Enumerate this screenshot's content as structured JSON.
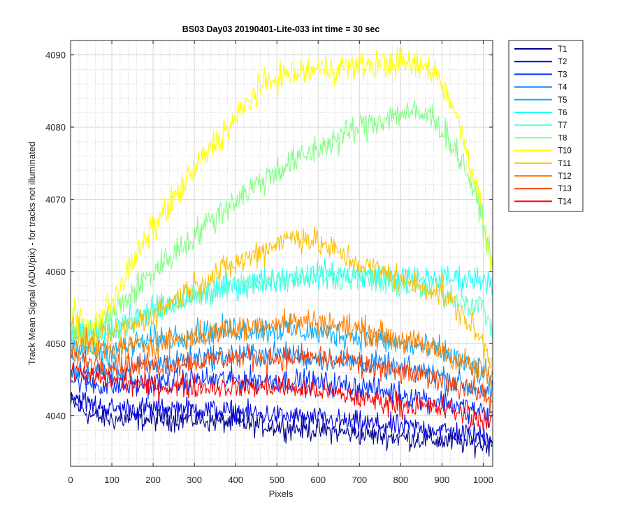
{
  "chart_data": {
    "type": "line",
    "title": "BS03 Day03 20190401-Lite-033 int time = 30 sec",
    "xlabel": "Pixels",
    "ylabel": "Track Mean Signal (ADU/pix) - for tracks not illuminated",
    "xlim": [
      0,
      1023
    ],
    "ylim": [
      4033,
      4092
    ],
    "xticks": [
      0,
      100,
      200,
      300,
      400,
      500,
      600,
      700,
      800,
      900,
      1000
    ],
    "yticks": [
      4040,
      4050,
      4060,
      4070,
      4080,
      4090
    ],
    "grid": true,
    "minor_grid": true,
    "legend_position": "outside-top-right",
    "series": [
      {
        "name": "T1",
        "color": "#00008f",
        "noise": 1.2,
        "points": [
          [
            0,
            4042
          ],
          [
            50,
            4040
          ],
          [
            100,
            4039.5
          ],
          [
            200,
            4039.5
          ],
          [
            300,
            4039.5
          ],
          [
            400,
            4039
          ],
          [
            500,
            4038.5
          ],
          [
            600,
            4038
          ],
          [
            700,
            4037.5
          ],
          [
            800,
            4037
          ],
          [
            900,
            4036.5
          ],
          [
            1023,
            4036
          ]
        ]
      },
      {
        "name": "T2",
        "color": "#0000e0",
        "noise": 1.2,
        "points": [
          [
            0,
            4043
          ],
          [
            50,
            4041.5
          ],
          [
            100,
            4041
          ],
          [
            200,
            4041
          ],
          [
            300,
            4041
          ],
          [
            400,
            4040.5
          ],
          [
            500,
            4040
          ],
          [
            600,
            4039.5
          ],
          [
            700,
            4039
          ],
          [
            800,
            4038.5
          ],
          [
            900,
            4038
          ],
          [
            1023,
            4037
          ]
        ]
      },
      {
        "name": "T3",
        "color": "#0030ff",
        "noise": 1.3,
        "points": [
          [
            0,
            4045
          ],
          [
            100,
            4044
          ],
          [
            200,
            4044.5
          ],
          [
            300,
            4045
          ],
          [
            400,
            4045
          ],
          [
            500,
            4045
          ],
          [
            600,
            4044.5
          ],
          [
            700,
            4044
          ],
          [
            800,
            4043
          ],
          [
            900,
            4042
          ],
          [
            1023,
            4040
          ]
        ]
      },
      {
        "name": "T4",
        "color": "#0080ff",
        "noise": 1.3,
        "points": [
          [
            0,
            4046
          ],
          [
            100,
            4046
          ],
          [
            200,
            4047
          ],
          [
            300,
            4048
          ],
          [
            400,
            4048.5
          ],
          [
            500,
            4048.5
          ],
          [
            600,
            4048
          ],
          [
            700,
            4047.5
          ],
          [
            800,
            4046.5
          ],
          [
            900,
            4045.5
          ],
          [
            1023,
            4043
          ]
        ]
      },
      {
        "name": "T5",
        "color": "#00b0ff",
        "noise": 1.4,
        "points": [
          [
            0,
            4049
          ],
          [
            100,
            4049
          ],
          [
            200,
            4050.5
          ],
          [
            300,
            4051.5
          ],
          [
            400,
            4052
          ],
          [
            500,
            4052
          ],
          [
            600,
            4051.5
          ],
          [
            700,
            4051
          ],
          [
            800,
            4050
          ],
          [
            900,
            4049
          ],
          [
            1023,
            4045
          ]
        ]
      },
      {
        "name": "T6",
        "color": "#20ffff",
        "noise": 1.4,
        "points": [
          [
            0,
            4051
          ],
          [
            100,
            4052
          ],
          [
            200,
            4054.5
          ],
          [
            300,
            4056.5
          ],
          [
            400,
            4058
          ],
          [
            500,
            4059
          ],
          [
            600,
            4059.5
          ],
          [
            700,
            4059.5
          ],
          [
            800,
            4059
          ],
          [
            900,
            4059
          ],
          [
            1000,
            4059
          ],
          [
            1023,
            4058.5
          ]
        ]
      },
      {
        "name": "T7",
        "color": "#60ffd0",
        "noise": 1.4,
        "points": [
          [
            0,
            4051
          ],
          [
            100,
            4052
          ],
          [
            200,
            4054.5
          ],
          [
            300,
            4056.5
          ],
          [
            400,
            4058
          ],
          [
            500,
            4059
          ],
          [
            600,
            4059.5
          ],
          [
            700,
            4059
          ],
          [
            800,
            4058
          ],
          [
            900,
            4057
          ],
          [
            1000,
            4055
          ],
          [
            1023,
            4052
          ]
        ]
      },
      {
        "name": "T8",
        "color": "#80ff80",
        "noise": 1.6,
        "points": [
          [
            0,
            4052
          ],
          [
            50,
            4051
          ],
          [
            100,
            4054
          ],
          [
            150,
            4057
          ],
          [
            200,
            4060
          ],
          [
            300,
            4065
          ],
          [
            400,
            4070
          ],
          [
            500,
            4074
          ],
          [
            600,
            4077
          ],
          [
            700,
            4080
          ],
          [
            800,
            4082
          ],
          [
            880,
            4081.5
          ],
          [
            920,
            4078
          ],
          [
            960,
            4074
          ],
          [
            1000,
            4067
          ],
          [
            1023,
            4060
          ]
        ]
      },
      {
        "name": "T10",
        "color": "#ffff00",
        "noise": 1.6,
        "points": [
          [
            0,
            4054
          ],
          [
            50,
            4052
          ],
          [
            100,
            4056
          ],
          [
            150,
            4061
          ],
          [
            200,
            4066
          ],
          [
            250,
            4070
          ],
          [
            300,
            4074
          ],
          [
            350,
            4078
          ],
          [
            400,
            4081
          ],
          [
            450,
            4085
          ],
          [
            500,
            4087
          ],
          [
            600,
            4088
          ],
          [
            700,
            4088.5
          ],
          [
            800,
            4089
          ],
          [
            880,
            4088
          ],
          [
            920,
            4084
          ],
          [
            960,
            4077
          ],
          [
            1000,
            4068
          ],
          [
            1023,
            4060
          ]
        ]
      },
      {
        "name": "T11",
        "color": "#ffc000",
        "noise": 1.5,
        "points": [
          [
            0,
            4052
          ],
          [
            50,
            4050
          ],
          [
            100,
            4051
          ],
          [
            200,
            4054
          ],
          [
            300,
            4058
          ],
          [
            400,
            4061
          ],
          [
            500,
            4064
          ],
          [
            550,
            4065
          ],
          [
            600,
            4064
          ],
          [
            700,
            4061
          ],
          [
            800,
            4059
          ],
          [
            900,
            4057
          ],
          [
            950,
            4054
          ],
          [
            1000,
            4050
          ],
          [
            1023,
            4047
          ]
        ]
      },
      {
        "name": "T12",
        "color": "#ff8000",
        "noise": 1.4,
        "points": [
          [
            0,
            4050
          ],
          [
            100,
            4049
          ],
          [
            200,
            4050
          ],
          [
            300,
            4051
          ],
          [
            400,
            4052
          ],
          [
            500,
            4053
          ],
          [
            600,
            4053
          ],
          [
            700,
            4052
          ],
          [
            800,
            4050.5
          ],
          [
            900,
            4049
          ],
          [
            1000,
            4046
          ],
          [
            1023,
            4045
          ]
        ]
      },
      {
        "name": "T13",
        "color": "#ff4000",
        "noise": 1.3,
        "points": [
          [
            0,
            4048
          ],
          [
            100,
            4047
          ],
          [
            200,
            4047
          ],
          [
            300,
            4047.5
          ],
          [
            400,
            4048
          ],
          [
            500,
            4048
          ],
          [
            600,
            4048
          ],
          [
            700,
            4047
          ],
          [
            800,
            4046
          ],
          [
            900,
            4045
          ],
          [
            1000,
            4043
          ],
          [
            1023,
            4042
          ]
        ]
      },
      {
        "name": "T14",
        "color": "#ff0000",
        "noise": 1.2,
        "points": [
          [
            0,
            4046
          ],
          [
            100,
            4045
          ],
          [
            200,
            4044
          ],
          [
            300,
            4044
          ],
          [
            400,
            4044
          ],
          [
            500,
            4044
          ],
          [
            600,
            4043.5
          ],
          [
            700,
            4042.5
          ],
          [
            800,
            4041.5
          ],
          [
            900,
            4041
          ],
          [
            1000,
            4039.5
          ],
          [
            1023,
            4039
          ]
        ]
      }
    ]
  }
}
